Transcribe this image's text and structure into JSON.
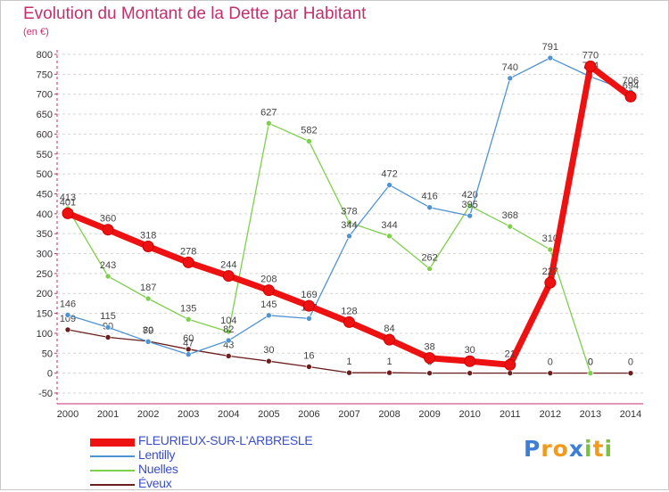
{
  "header": {
    "title": "Evolution du Montant de la Dette par Habitant",
    "subtitle": "(en €)"
  },
  "chart_data": {
    "type": "line",
    "x": [
      "2000",
      "2001",
      "2002",
      "2003",
      "2004",
      "2005",
      "2006",
      "2007",
      "2008",
      "2009",
      "2010",
      "2011",
      "2012",
      "2013",
      "2014"
    ],
    "ylim": [
      -50,
      800
    ],
    "yticks": [
      -50,
      0,
      50,
      100,
      150,
      200,
      250,
      300,
      350,
      400,
      450,
      500,
      550,
      600,
      650,
      700,
      750,
      800
    ],
    "grid": "horizontal-dashed",
    "legend_position": "bottom-left",
    "series": [
      {
        "name": "FLEURIEUX-SUR-L'ARBRESLE",
        "color": "#ee1111",
        "values": [
          401,
          360,
          318,
          278,
          244,
          208,
          169,
          128,
          84,
          38,
          30,
          21,
          227,
          770,
          694
        ]
      },
      {
        "name": "Lentilly",
        "color": "#4f93d0",
        "values": [
          146,
          115,
          79,
          47,
          82,
          145,
          137,
          344,
          472,
          416,
          395,
          740,
          791,
          744,
          706
        ]
      },
      {
        "name": "Nuelles",
        "color": "#7fcf4e",
        "values": [
          413,
          243,
          187,
          135,
          104,
          627,
          582,
          378,
          344,
          262,
          420,
          368,
          310,
          0,
          null
        ]
      },
      {
        "name": "Éveux",
        "color": "#6b1e1e",
        "values": [
          109,
          90,
          80,
          60,
          43,
          30,
          16,
          1,
          1,
          0,
          0,
          0,
          0,
          0,
          0
        ]
      }
    ]
  },
  "logo": {
    "text": "Proxiti",
    "letters": [
      {
        "ch": "P",
        "color": "#3d7fd6"
      },
      {
        "ch": "r",
        "color": "#f29a1c"
      },
      {
        "ch": "o",
        "color": "#f29a1c"
      },
      {
        "ch": "x",
        "color": "#3d7fd6"
      },
      {
        "ch": "i",
        "color": "#7cc242"
      },
      {
        "ch": "t",
        "color": "#f29a1c"
      },
      {
        "ch": "i",
        "color": "#7cc242"
      }
    ]
  }
}
